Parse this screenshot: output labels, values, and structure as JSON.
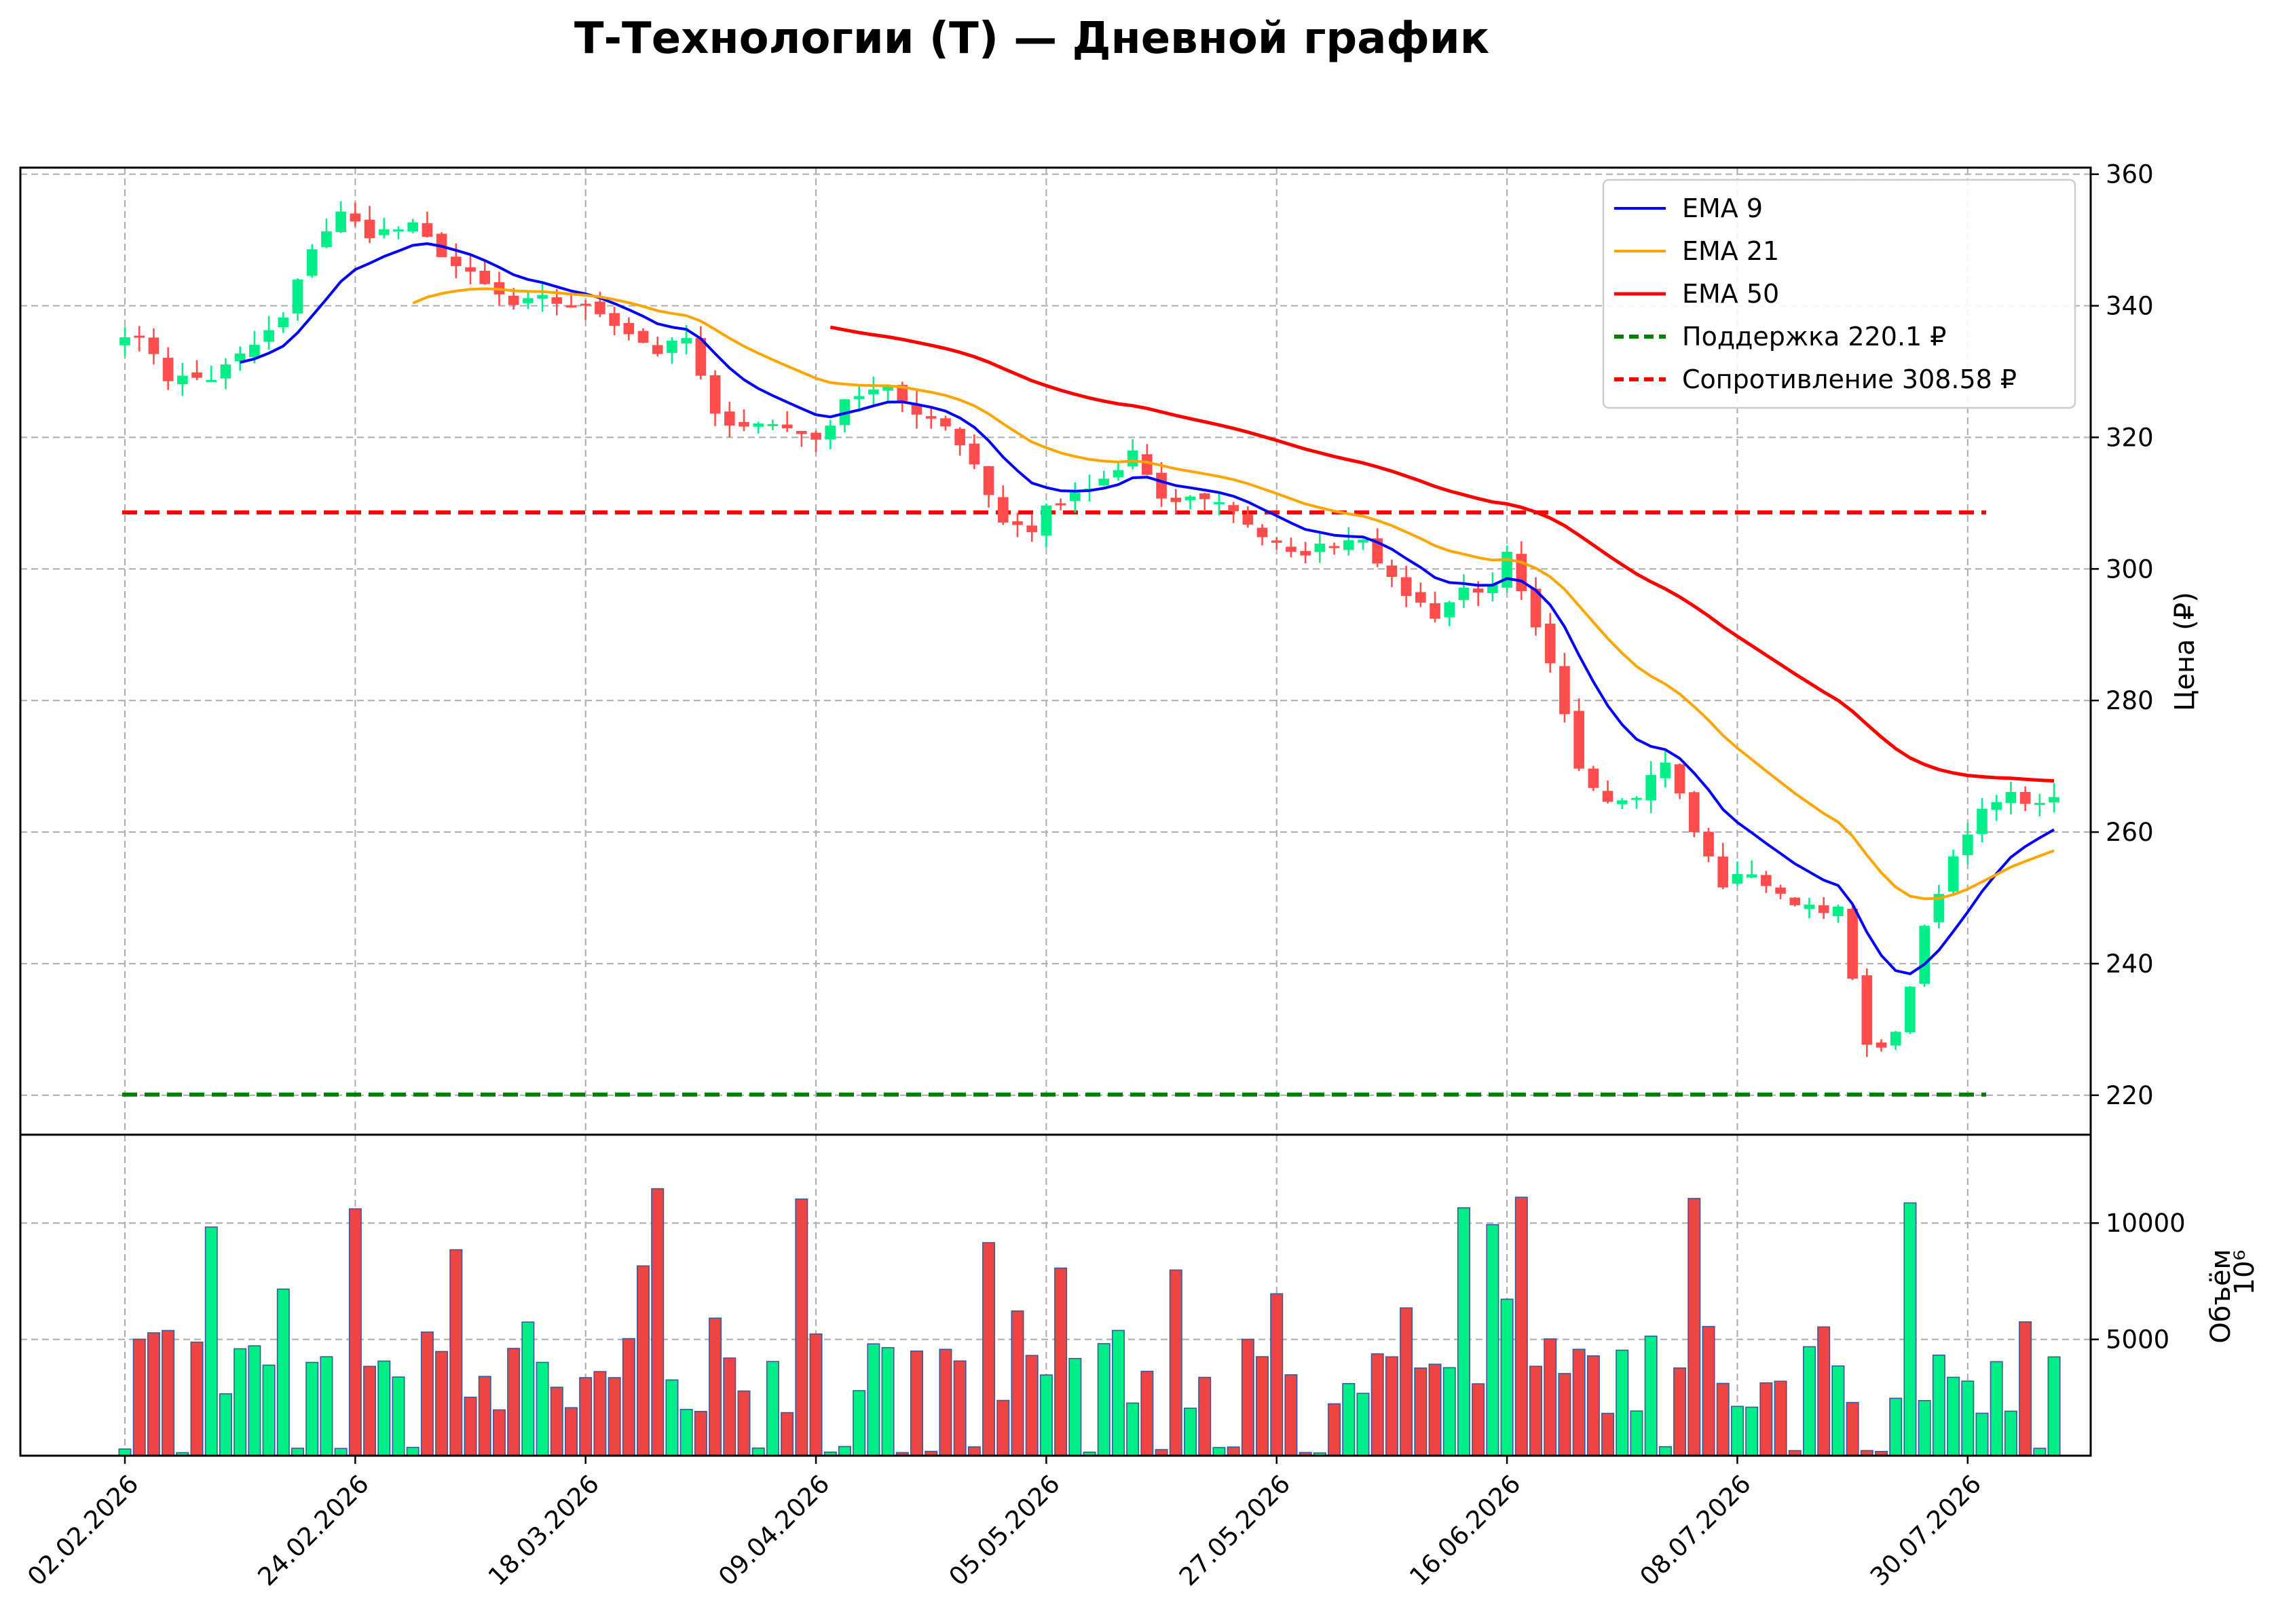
{
  "chart_data": {
    "type": "candlestick",
    "title": "Т-Технологии (T) — Дневной график",
    "price_panel": {
      "ylabel": "Цена (₽)",
      "ylim": [
        214,
        361
      ],
      "yticks": [
        "220",
        "240",
        "260",
        "280",
        "300",
        "320",
        "340",
        "360"
      ],
      "grid": true,
      "legend_position": "top-right"
    },
    "volume_panel": {
      "ylabel": "Объём",
      "scale_label": "10⁶",
      "ylim": [
        0,
        13800
      ],
      "yticks": [
        "5000",
        "10000"
      ],
      "grid": true
    },
    "x_ticks": [
      "02.02.2026",
      "24.02.2026",
      "18.03.2026",
      "09.04.2026",
      "05.05.2026",
      "27.05.2026",
      "16.06.2026",
      "08.07.2026",
      "30.07.2026"
    ],
    "tick_positions": [
      0,
      16,
      32,
      48,
      64,
      80,
      96,
      112,
      128
    ],
    "close_path": [
      [
        0,
        336
      ],
      [
        2,
        333
      ],
      [
        3,
        329
      ],
      [
        6,
        329
      ],
      [
        9,
        334
      ],
      [
        11,
        338
      ],
      [
        13,
        349
      ],
      [
        15,
        354
      ],
      [
        17,
        351
      ],
      [
        20,
        352
      ],
      [
        21,
        350
      ],
      [
        23,
        346
      ],
      [
        25,
        343
      ],
      [
        27,
        340
      ],
      [
        29,
        341
      ],
      [
        31,
        340
      ],
      [
        33,
        339
      ],
      [
        35,
        336
      ],
      [
        37,
        333
      ],
      [
        39,
        335
      ],
      [
        41,
        323
      ],
      [
        43,
        322
      ],
      [
        45,
        322
      ],
      [
        47,
        321
      ],
      [
        48,
        319
      ],
      [
        50,
        326
      ],
      [
        52,
        327
      ],
      [
        53,
        327
      ],
      [
        55,
        324
      ],
      [
        57,
        322
      ],
      [
        59,
        316
      ],
      [
        61,
        307
      ],
      [
        63,
        306
      ],
      [
        64,
        309
      ],
      [
        65,
        310
      ],
      [
        67,
        312
      ],
      [
        69,
        315
      ],
      [
        70,
        318
      ],
      [
        72,
        310
      ],
      [
        75,
        311
      ],
      [
        77,
        309
      ],
      [
        79,
        305
      ],
      [
        81,
        302
      ],
      [
        84,
        304
      ],
      [
        86,
        305
      ],
      [
        88,
        298
      ],
      [
        91,
        293
      ],
      [
        93,
        297
      ],
      [
        95,
        297
      ],
      [
        96,
        302
      ],
      [
        97,
        296
      ],
      [
        99,
        285
      ],
      [
        101,
        270
      ],
      [
        103,
        265
      ],
      [
        105,
        266
      ],
      [
        107,
        271
      ],
      [
        109,
        260
      ],
      [
        111,
        252
      ],
      [
        113,
        254
      ],
      [
        115,
        250
      ],
      [
        117,
        249
      ],
      [
        119,
        248
      ],
      [
        121,
        227
      ],
      [
        123,
        229
      ],
      [
        125,
        245
      ],
      [
        127,
        256
      ],
      [
        129,
        264
      ],
      [
        131,
        266
      ],
      [
        133,
        264
      ],
      [
        134,
        265
      ]
    ],
    "ohlc_candles": "135 daily candles, one per x position 0 to 134; bodies and wicks derived in script from close_path; green = up day, red = down day",
    "volume_bars": "135 daily volume bars, 0 to 12600, same colouring as the candles",
    "series": [
      {
        "name": "EMA 9",
        "period": 9,
        "color": "#0000ff"
      },
      {
        "name": "EMA 21",
        "period": 21,
        "color": "#ffa500"
      },
      {
        "name": "EMA 50",
        "period": 50,
        "color": "#ff0000"
      }
    ],
    "levels": [
      {
        "name": "Поддержка 220.1 ₽",
        "value": 220.1,
        "color": "#008000",
        "style": "dashed"
      },
      {
        "name": "Сопротивление 308.58 ₽",
        "value": 308.58,
        "color": "#ff0000",
        "style": "dashed"
      }
    ],
    "colors": {
      "up_candle": "#00ee88",
      "down_candle": "#ff4d4d",
      "volume_up": "#00ee88",
      "volume_down": "#ee4444",
      "volume_edge": "#3a5a99",
      "grid": "#b0b0b0"
    }
  }
}
